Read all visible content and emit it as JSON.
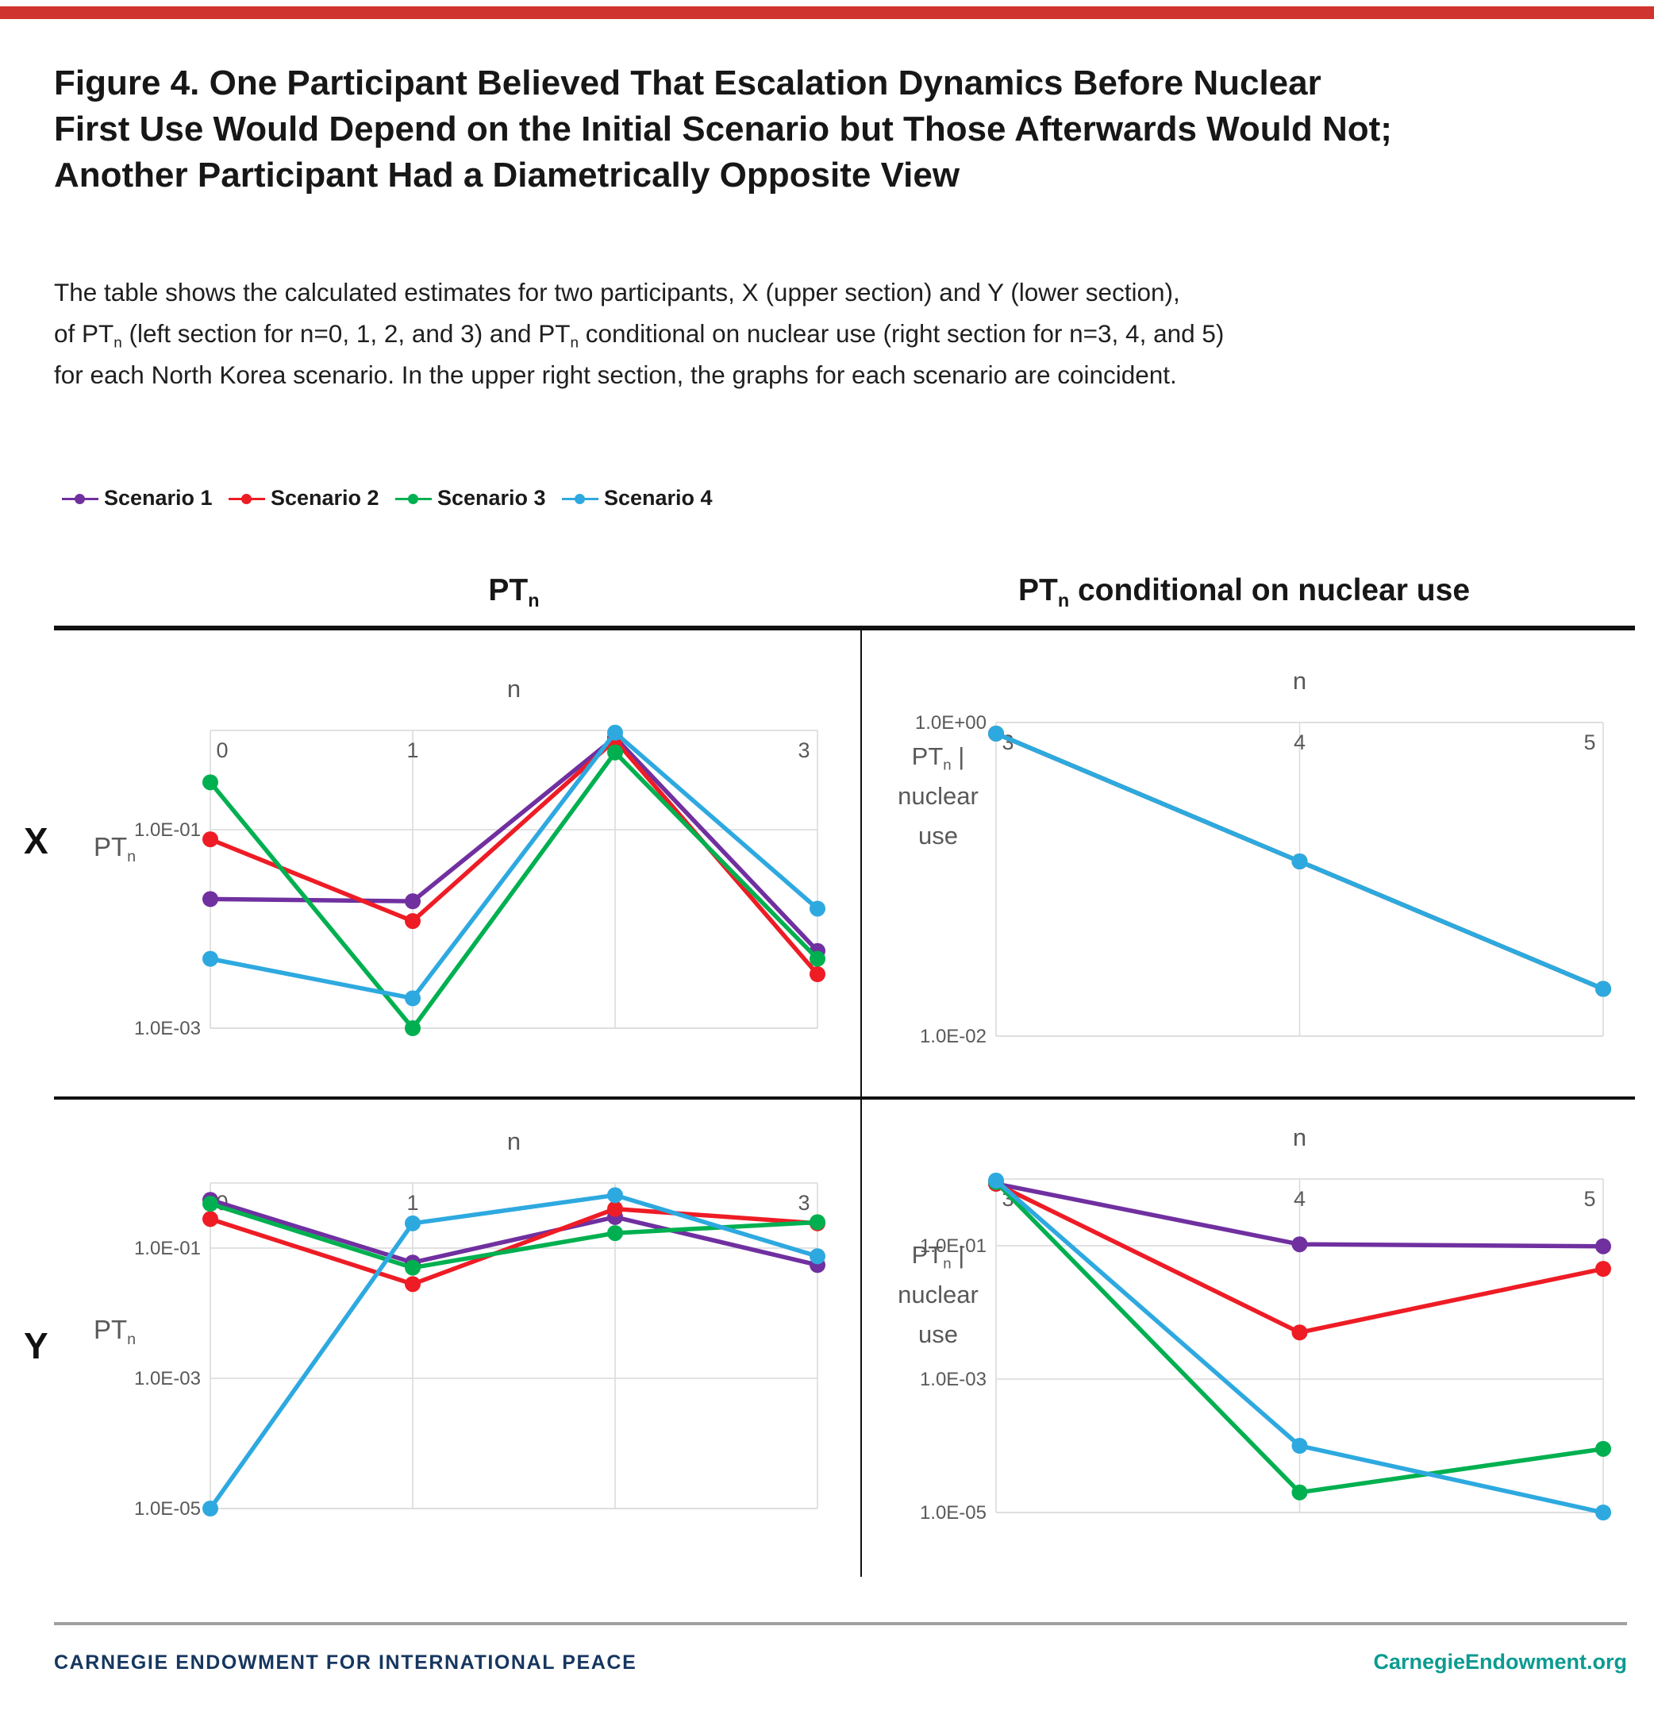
{
  "page": {
    "top_bar_color": "#d0342f",
    "title_lines": [
      "Figure 4. One Participant Believed That Escalation Dynamics Before Nuclear",
      "First Use Would Depend on the Initial Scenario but Those Afterwards Would Not;",
      "Another Participant Had a Diametrically Opposite View"
    ],
    "description_lines": [
      [
        {
          "t": "The table shows the calculated estimates for two participants, X (upper section) and Y (lower section),"
        }
      ],
      [
        {
          "t": "of PT"
        },
        {
          "t": "n",
          "sub": true
        },
        {
          "t": " (left section for n=0, 1, 2, and 3) and PT"
        },
        {
          "t": "n",
          "sub": true
        },
        {
          "t": " conditional on nuclear use (right section for n=3, 4, and 5)"
        }
      ],
      [
        {
          "t": "for each North Korea scenario. In the upper right section, the graphs for each scenario are coincident."
        }
      ]
    ],
    "footer": {
      "left": "CARNEGIE ENDOWMENT FOR INTERNATIONAL PEACE",
      "left_color": "#16365f",
      "right": "CarnegieEndowment.org",
      "right_color": "#0b9b91"
    }
  },
  "legend": {
    "items": [
      {
        "label": "Scenario 1",
        "color": "#7030A0"
      },
      {
        "label": "Scenario 2",
        "color": "#EE1C25"
      },
      {
        "label": "Scenario 3",
        "color": "#00B050"
      },
      {
        "label": "Scenario 4",
        "color": "#2EA9E0"
      }
    ]
  },
  "columns": {
    "left_header_segments": [
      {
        "t": "PT"
      },
      {
        "t": "n",
        "sub": true
      }
    ],
    "right_header_segments": [
      {
        "t": "PT"
      },
      {
        "t": "n",
        "sub": true
      },
      {
        "t": " conditional on nuclear use"
      }
    ]
  },
  "rows": {
    "x_label": "X",
    "y_label": "Y"
  },
  "axis_titles": {
    "ptn_segments": [
      {
        "t": "PT"
      },
      {
        "t": "n",
        "sub": true
      }
    ],
    "cond_line1_segments": [
      {
        "t": "PT"
      },
      {
        "t": "n",
        "sub": true
      },
      {
        "t": " |"
      }
    ],
    "cond_line2": "nuclear",
    "cond_line3": "use"
  },
  "chart_data": [
    {
      "id": "x-ptn",
      "type": "line",
      "participant": "X",
      "section": "PTn",
      "x_title": "n",
      "x_categories": [
        "0",
        "1",
        "2",
        "3"
      ],
      "y_scale": "log",
      "ylim": [
        0.001,
        1
      ],
      "yticks": [
        {
          "value": 0.1,
          "label": "1.0E-01"
        },
        {
          "value": 0.001,
          "label": "1.0E-03"
        }
      ],
      "grid": true,
      "series": [
        {
          "name": "Scenario 1",
          "color": "#7030A0",
          "values": [
            0.02,
            0.019,
            0.85,
            0.006
          ]
        },
        {
          "name": "Scenario 2",
          "color": "#EE1C25",
          "values": [
            0.08,
            0.012,
            0.8,
            0.0035
          ]
        },
        {
          "name": "Scenario 3",
          "color": "#00B050",
          "values": [
            0.3,
            0.001,
            0.6,
            0.005
          ]
        },
        {
          "name": "Scenario 4",
          "color": "#2EA9E0",
          "values": [
            0.005,
            0.002,
            0.95,
            0.016
          ]
        }
      ]
    },
    {
      "id": "x-cond",
      "type": "line",
      "participant": "X",
      "section": "PTn conditional on nuclear use",
      "note": "graphs for each scenario are coincident",
      "x_title": "n",
      "x_categories": [
        "3",
        "4",
        "5"
      ],
      "y_scale": "log",
      "ylim": [
        0.01,
        1
      ],
      "yticks": [
        {
          "value": 1,
          "label": "1.0E+00"
        },
        {
          "value": 0.01,
          "label": "1.0E-02"
        }
      ],
      "grid": true,
      "series": [
        {
          "name": "Scenario 1",
          "color": "#7030A0",
          "values": [
            0.85,
            0.13,
            0.02
          ]
        },
        {
          "name": "Scenario 2",
          "color": "#EE1C25",
          "values": [
            0.85,
            0.13,
            0.02
          ]
        },
        {
          "name": "Scenario 3",
          "color": "#00B050",
          "values": [
            0.85,
            0.13,
            0.02
          ]
        },
        {
          "name": "Scenario 4",
          "color": "#2EA9E0",
          "values": [
            0.85,
            0.13,
            0.02
          ]
        }
      ]
    },
    {
      "id": "y-ptn",
      "type": "line",
      "participant": "Y",
      "section": "PTn",
      "x_title": "n",
      "x_categories": [
        "0",
        "1",
        "2",
        "3"
      ],
      "y_scale": "log",
      "ylim": [
        1e-05,
        1
      ],
      "yticks": [
        {
          "value": 0.1,
          "label": "1.0E-01"
        },
        {
          "value": 0.001,
          "label": "1.0E-03"
        },
        {
          "value": 1e-05,
          "label": "1.0E-05"
        }
      ],
      "grid": true,
      "series": [
        {
          "name": "Scenario 1",
          "color": "#7030A0",
          "values": [
            0.55,
            0.06,
            0.3,
            0.055
          ]
        },
        {
          "name": "Scenario 2",
          "color": "#EE1C25",
          "values": [
            0.28,
            0.028,
            0.4,
            0.24
          ]
        },
        {
          "name": "Scenario 3",
          "color": "#00B050",
          "values": [
            0.48,
            0.05,
            0.17,
            0.25
          ]
        },
        {
          "name": "Scenario 4",
          "color": "#2EA9E0",
          "values": [
            1e-05,
            0.24,
            0.65,
            0.075
          ]
        }
      ]
    },
    {
      "id": "y-cond",
      "type": "line",
      "participant": "Y",
      "section": "PTn conditional on nuclear use",
      "x_title": "n",
      "x_categories": [
        "3",
        "4",
        "5"
      ],
      "y_scale": "log",
      "ylim": [
        1e-05,
        1
      ],
      "yticks": [
        {
          "value": 0.1,
          "label": "1.0E-01"
        },
        {
          "value": 0.001,
          "label": "1.0E-03"
        },
        {
          "value": 1e-05,
          "label": "1.0E-05"
        }
      ],
      "grid": true,
      "series": [
        {
          "name": "Scenario 1",
          "color": "#7030A0",
          "values": [
            0.85,
            0.105,
            0.098
          ]
        },
        {
          "name": "Scenario 2",
          "color": "#EE1C25",
          "values": [
            0.85,
            0.005,
            0.045
          ]
        },
        {
          "name": "Scenario 3",
          "color": "#00B050",
          "values": [
            0.9,
            2e-05,
            9e-05
          ]
        },
        {
          "name": "Scenario 4",
          "color": "#2EA9E0",
          "values": [
            0.95,
            0.0001,
            1e-05
          ]
        }
      ]
    }
  ]
}
